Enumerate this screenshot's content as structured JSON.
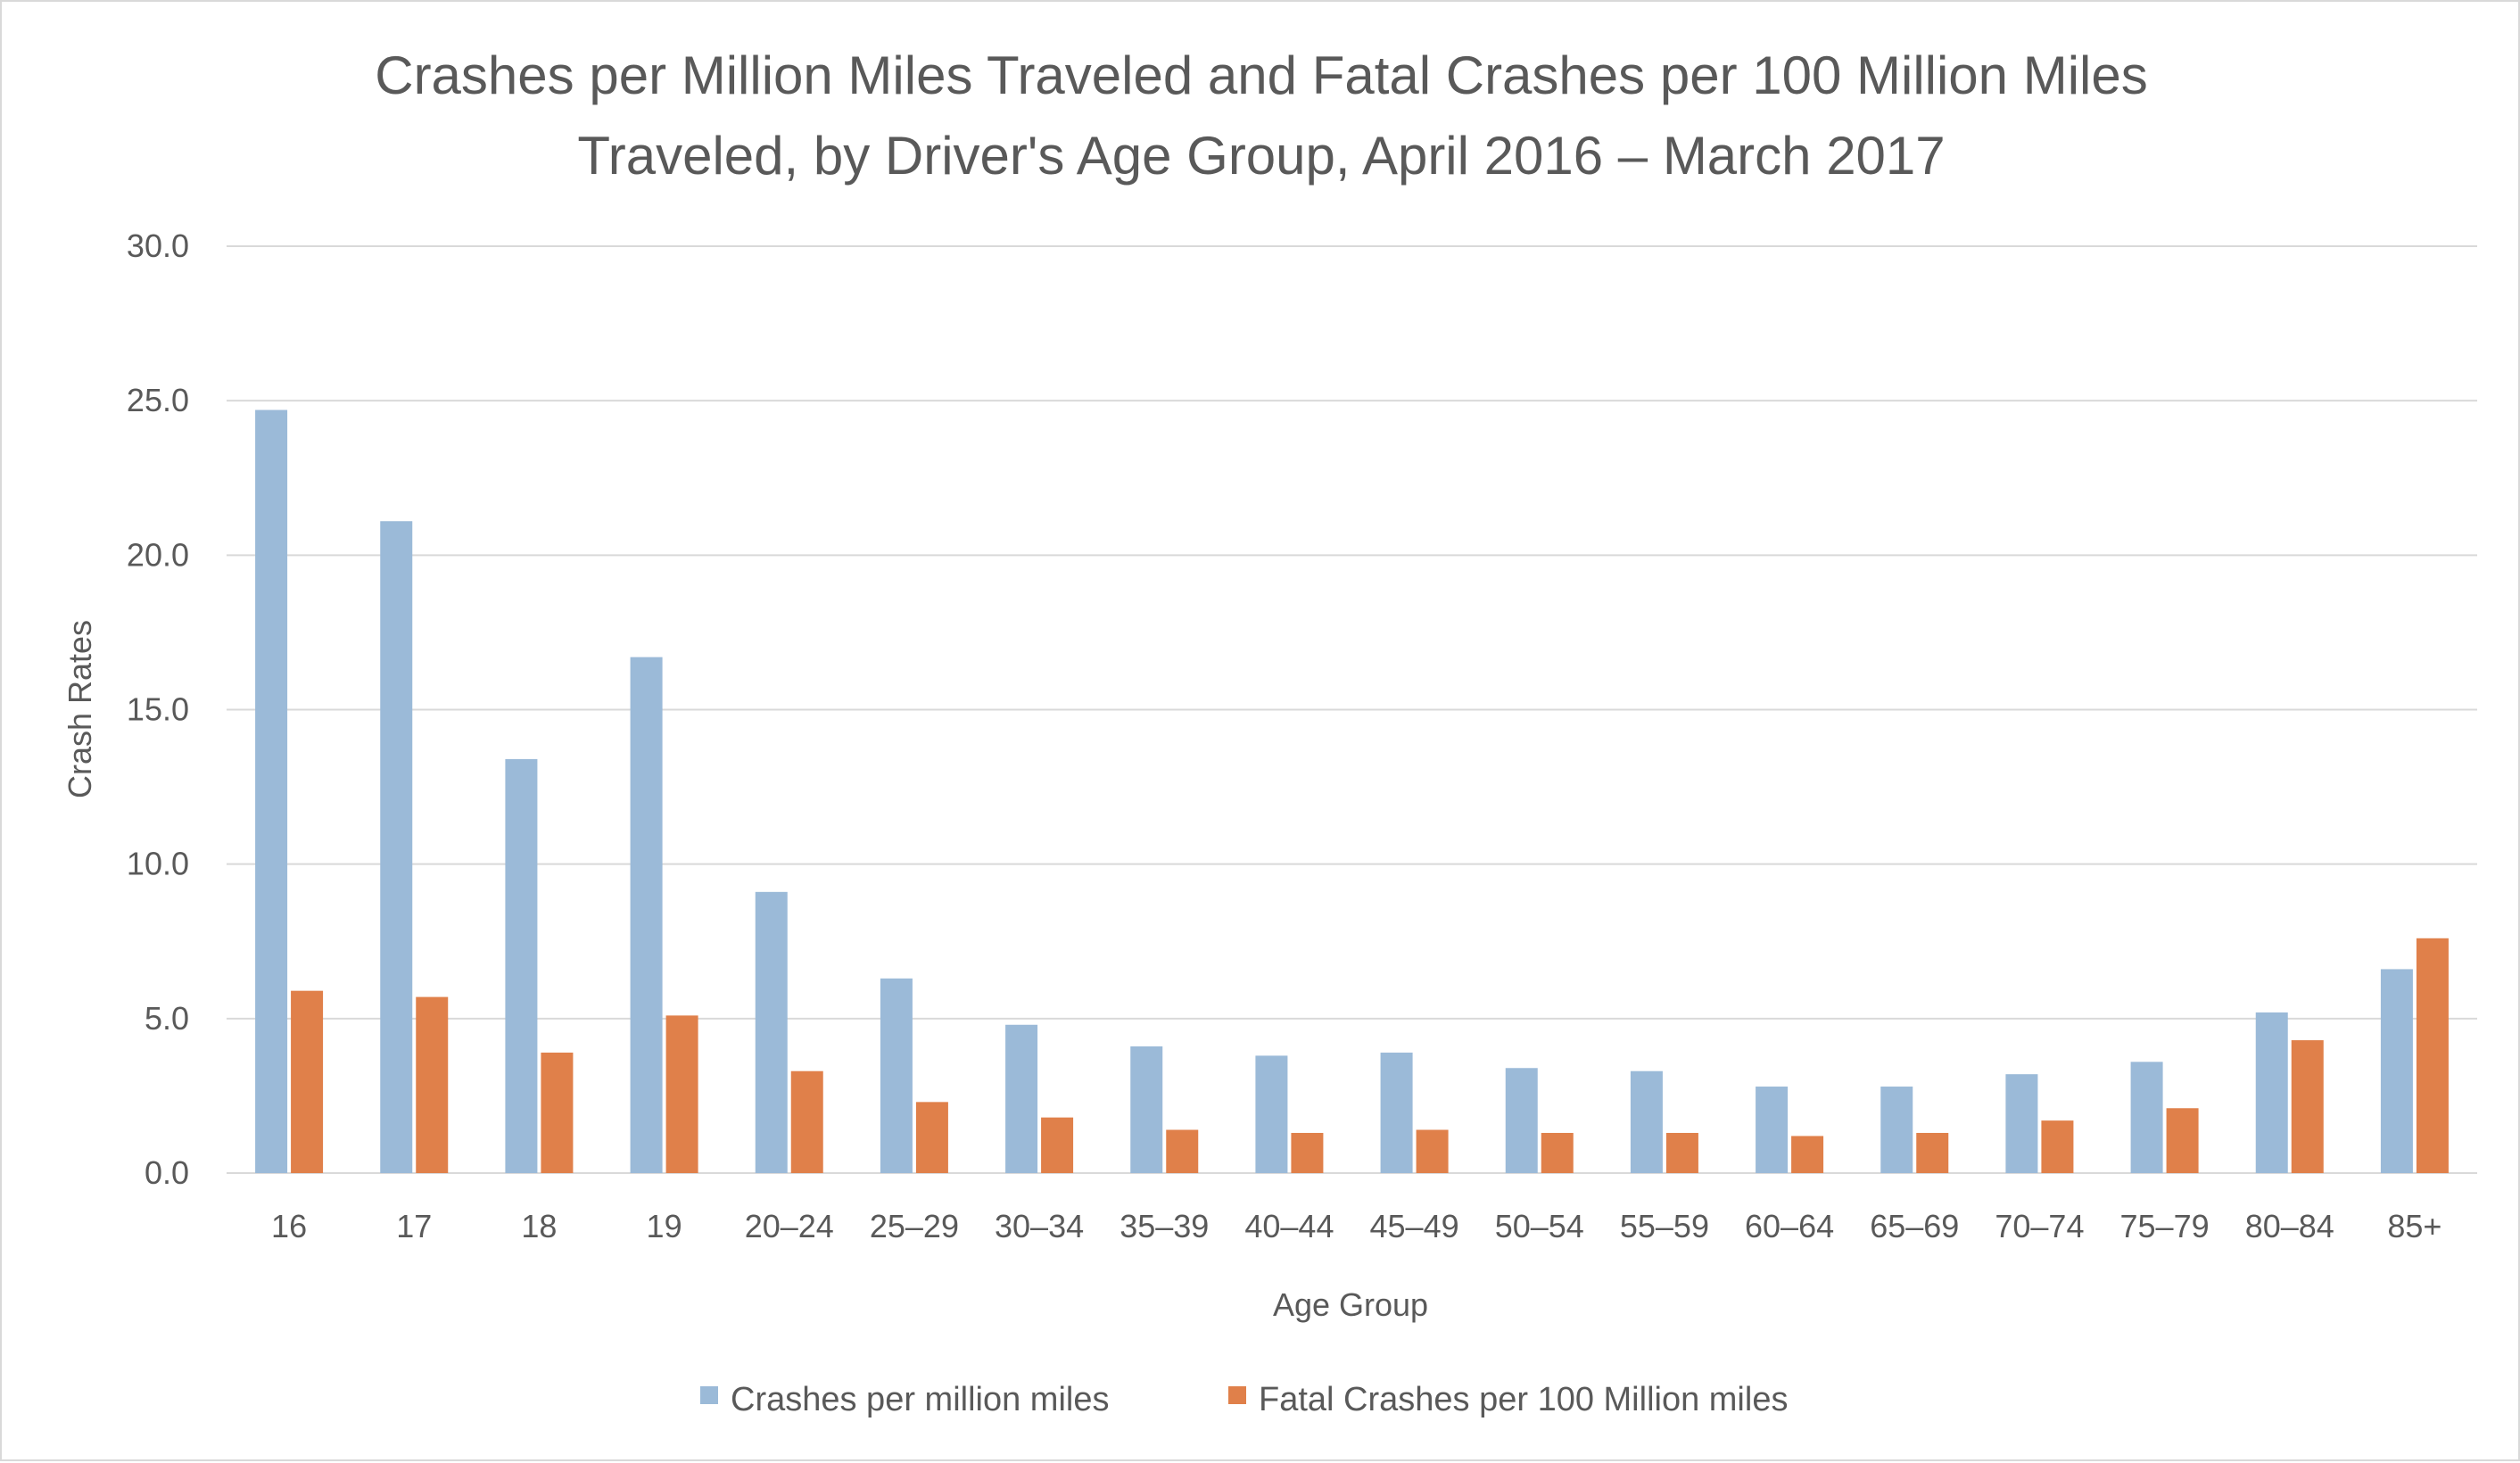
{
  "chart_data": {
    "type": "bar",
    "title_lines": [
      "Crashes per Million Miles Traveled and Fatal Crashes per 100 Million Miles",
      "Traveled, by Driver's Age Group, April 2016 – March 2017"
    ],
    "xlabel": "Age Group",
    "ylabel": "Crash Rates",
    "ylim": [
      0,
      30
    ],
    "yticks": [
      "0.0",
      "5.0",
      "10.0",
      "15.0",
      "20.0",
      "25.0",
      "30.0"
    ],
    "ytick_values": [
      0,
      5,
      10,
      15,
      20,
      25,
      30
    ],
    "grid": true,
    "legend_position": "bottom",
    "categories": [
      "16",
      "17",
      "18",
      "19",
      "20–24",
      "25–29",
      "30–34",
      "35–39",
      "40–44",
      "45–49",
      "50–54",
      "55–59",
      "60–64",
      "65–69",
      "70–74",
      "75–79",
      "80–84",
      "85+"
    ],
    "series": [
      {
        "name": "Crashes per million miles",
        "color": "#9bbad8",
        "values": [
          24.7,
          21.1,
          13.4,
          16.7,
          9.1,
          6.3,
          4.8,
          4.1,
          3.8,
          3.9,
          3.4,
          3.3,
          2.8,
          2.8,
          3.2,
          3.6,
          5.2,
          6.6
        ]
      },
      {
        "name": "Fatal Crashes per 100 Million miles",
        "color": "#e0804a",
        "values": [
          5.9,
          5.7,
          3.9,
          5.1,
          3.3,
          2.3,
          1.8,
          1.4,
          1.3,
          1.4,
          1.3,
          1.3,
          1.2,
          1.3,
          1.7,
          2.1,
          4.3,
          7.6
        ]
      }
    ]
  }
}
